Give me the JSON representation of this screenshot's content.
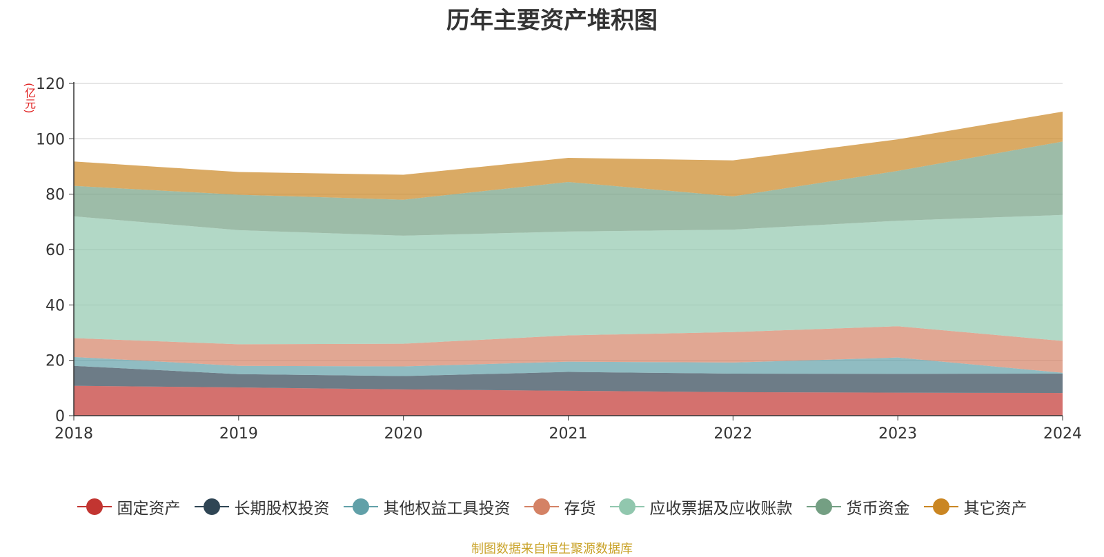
{
  "title": "历年主要资产堆积图",
  "footer": "制图数据来自恒生聚源数据库",
  "chart_data": {
    "type": "area",
    "stacked": true,
    "title": "历年主要资产堆积图",
    "unit_label": "(亿元)",
    "xlabel": "",
    "ylabel": "(亿元)",
    "categories": [
      "2018",
      "2019",
      "2020",
      "2021",
      "2022",
      "2023",
      "2024"
    ],
    "ylim": [
      0,
      120
    ],
    "yticks": [
      0,
      20,
      40,
      60,
      80,
      100,
      120
    ],
    "grid": true,
    "legend_position": "bottom",
    "series": [
      {
        "name": "固定资产",
        "color": "#c23531",
        "values": [
          10.8,
          10.2,
          9.5,
          9.0,
          8.5,
          8.3,
          8.2
        ]
      },
      {
        "name": "长期股权投资",
        "color": "#2f4554",
        "values": [
          7.2,
          4.8,
          4.8,
          6.8,
          6.7,
          6.8,
          7.0
        ]
      },
      {
        "name": "其他权益工具投资",
        "color": "#61a0a8",
        "values": [
          3.2,
          3.0,
          3.5,
          3.7,
          4.0,
          5.9,
          0.3
        ]
      },
      {
        "name": "存货",
        "color": "#d48265",
        "values": [
          6.8,
          7.8,
          8.2,
          9.5,
          11.0,
          11.3,
          11.5
        ]
      },
      {
        "name": "应收票据及应收账款",
        "color": "#91c7ae",
        "values": [
          44.0,
          41.2,
          39.0,
          37.5,
          37.0,
          38.1,
          45.5
        ]
      },
      {
        "name": "货币资金",
        "color": "#749f83",
        "values": [
          11.0,
          12.8,
          13.0,
          17.9,
          12.0,
          18.0,
          26.5
        ]
      },
      {
        "name": "其它资产",
        "color": "#ca8622",
        "values": [
          8.8,
          8.2,
          9.0,
          8.7,
          13.0,
          11.4,
          10.8
        ]
      }
    ]
  }
}
